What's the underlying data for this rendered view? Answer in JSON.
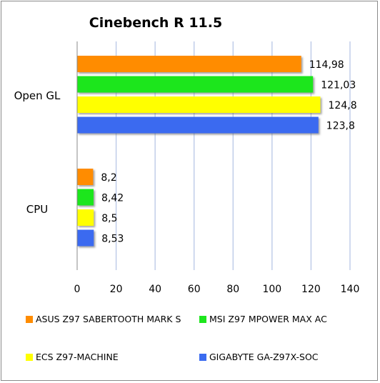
{
  "chart_data": {
    "type": "bar",
    "orientation": "horizontal",
    "title": "Cinebench R 11.5",
    "categories": [
      "Open GL",
      "CPU"
    ],
    "xlim": [
      0,
      140
    ],
    "xticks": [
      0,
      20,
      40,
      60,
      80,
      100,
      120,
      140
    ],
    "grid": "vertical",
    "legend_position": "bottom",
    "series": [
      {
        "name": "ASUS Z97 SABERTOOTH MARK S",
        "color": "#ff8c00",
        "values": [
          114.98,
          8.2
        ],
        "labels": [
          "114,98",
          "8,2"
        ]
      },
      {
        "name": "MSI Z97 MPOWER MAX AC",
        "color": "#1ee61e",
        "values": [
          121.03,
          8.42
        ],
        "labels": [
          "121,03",
          "8,42"
        ]
      },
      {
        "name": "ECS Z97-MACHINE",
        "color": "#ffff00",
        "values": [
          124.8,
          8.5
        ],
        "labels": [
          "124,8",
          "8,5"
        ]
      },
      {
        "name": "GIGABYTE GA-Z97X-SOC",
        "color": "#3a6bf0",
        "values": [
          123.8,
          8.53
        ],
        "labels": [
          "123,8",
          "8,53"
        ]
      }
    ]
  }
}
